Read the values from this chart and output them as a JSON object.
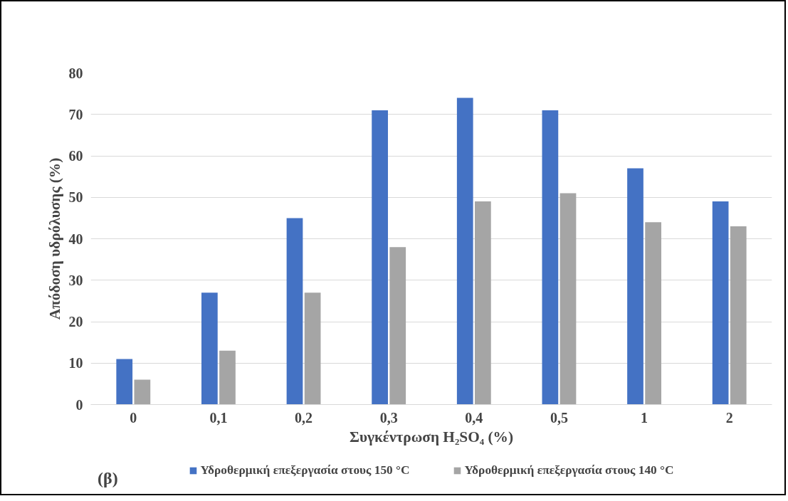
{
  "chart_data": {
    "type": "bar",
    "xlabel": "Συγκέντρωση H₂SO₄ (%)",
    "ylabel": "Απόδοση υδρόλυσης (%)",
    "categories": [
      "0",
      "0,1",
      "0,2",
      "0,3",
      "0,4",
      "0,5",
      "1",
      "2"
    ],
    "series": [
      {
        "name": "Υδροθερμική επεξεργασία στους 150 °C",
        "color": "#4472c4",
        "values": [
          11,
          27,
          45,
          71,
          74,
          71,
          57,
          49
        ]
      },
      {
        "name": "Υδροθερμική επεξεργασία στους 140 °C",
        "color": "#a5a5a5",
        "values": [
          6,
          13,
          27,
          38,
          49,
          51,
          44,
          43
        ]
      }
    ],
    "ylim": [
      0,
      80
    ],
    "yticks": [
      0,
      10,
      20,
      30,
      40,
      50,
      60,
      70,
      80
    ],
    "grid": "y",
    "legend": "bottom",
    "annotations": [
      "(β)"
    ]
  }
}
